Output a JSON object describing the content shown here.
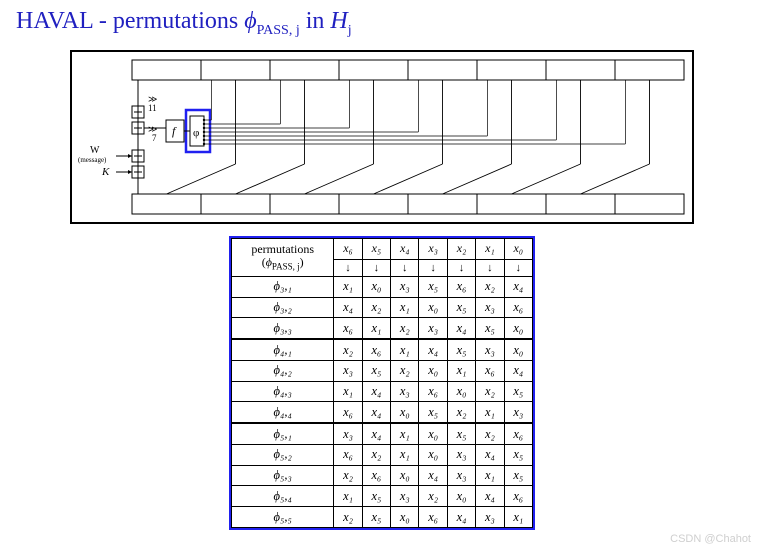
{
  "title": {
    "prefix": "HAVAL - permutations ",
    "phi": "ϕ",
    "phi_sub": "PASS, j",
    "mid": " in ",
    "H": "H",
    "H_sub": "j"
  },
  "diagram": {
    "top_row_cells": 8,
    "bottom_row_cells": 8,
    "rotations": {
      "top": {
        "sym": "≫",
        "val": "11"
      },
      "bottom": {
        "sym": "≫",
        "val": "7"
      }
    },
    "f_label": "f",
    "phi_label": "φ",
    "W_label": "W",
    "W_sub": "(message)",
    "K_label": "K",
    "colors": {
      "stroke": "#000000",
      "highlight": "#2020f0"
    }
  },
  "table": {
    "header_label_line1": "permutations",
    "header_label_line2_phi": "ϕ",
    "header_label_line2_sub": "PASS, j",
    "columns": [
      "x₆",
      "x₅",
      "x₄",
      "x₃",
      "x₂",
      "x₁",
      "x₀"
    ],
    "arrow": "↓",
    "rows": [
      {
        "label": "ϕ₃,₁",
        "cells": [
          "x₁",
          "x₀",
          "x₃",
          "x₅",
          "x₆",
          "x₂",
          "x₄"
        ]
      },
      {
        "label": "ϕ₃,₂",
        "cells": [
          "x₄",
          "x₂",
          "x₁",
          "x₀",
          "x₅",
          "x₃",
          "x₆"
        ]
      },
      {
        "label": "ϕ₃,₃",
        "cells": [
          "x₆",
          "x₁",
          "x₂",
          "x₃",
          "x₄",
          "x₅",
          "x₀"
        ]
      },
      {
        "label": "ϕ₄,₁",
        "cells": [
          "x₂",
          "x₆",
          "x₁",
          "x₄",
          "x₅",
          "x₃",
          "x₀"
        ]
      },
      {
        "label": "ϕ₄,₂",
        "cells": [
          "x₃",
          "x₅",
          "x₂",
          "x₀",
          "x₁",
          "x₆",
          "x₄"
        ]
      },
      {
        "label": "ϕ₄,₃",
        "cells": [
          "x₁",
          "x₄",
          "x₃",
          "x₆",
          "x₀",
          "x₂",
          "x₅"
        ]
      },
      {
        "label": "ϕ₄,₄",
        "cells": [
          "x₆",
          "x₄",
          "x₀",
          "x₅",
          "x₂",
          "x₁",
          "x₃"
        ]
      },
      {
        "label": "ϕ₅,₁",
        "cells": [
          "x₃",
          "x₄",
          "x₁",
          "x₀",
          "x₅",
          "x₂",
          "x₆"
        ]
      },
      {
        "label": "ϕ₅,₂",
        "cells": [
          "x₆",
          "x₂",
          "x₁",
          "x₀",
          "x₃",
          "x₄",
          "x₅"
        ]
      },
      {
        "label": "ϕ₅,₃",
        "cells": [
          "x₂",
          "x₆",
          "x₀",
          "x₄",
          "x₃",
          "x₁",
          "x₅"
        ]
      },
      {
        "label": "ϕ₅,₄",
        "cells": [
          "x₁",
          "x₅",
          "x₃",
          "x₂",
          "x₀",
          "x₄",
          "x₆"
        ]
      },
      {
        "label": "ϕ₅,₅",
        "cells": [
          "x₂",
          "x₅",
          "x₀",
          "x₆",
          "x₄",
          "x₃",
          "x₁"
        ]
      }
    ],
    "group_breaks_after": [
      2,
      6
    ]
  },
  "watermark": "CSDN @Chahot"
}
